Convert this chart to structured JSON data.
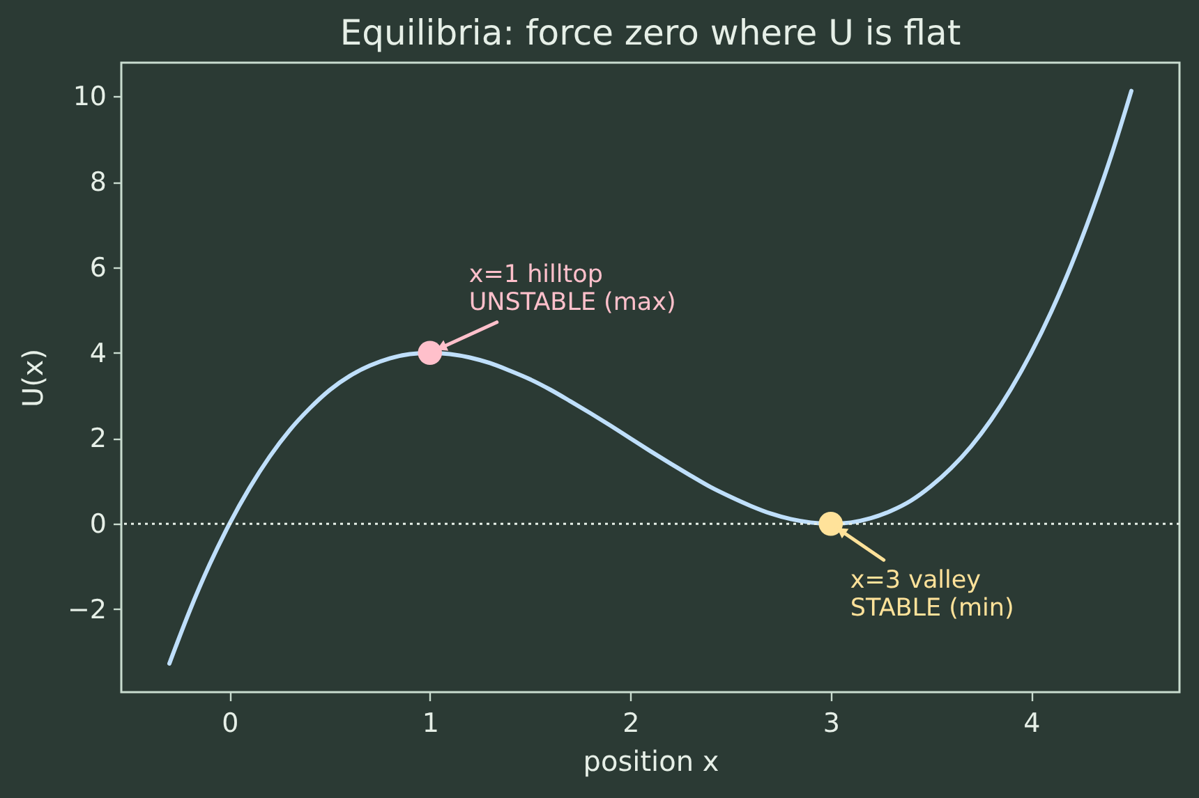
{
  "chart_data": {
    "type": "line",
    "title": "Equilibria: force zero where U is flat",
    "xlabel": "position x",
    "ylabel": "U(x)",
    "xlim": [
      -0.54,
      4.74
    ],
    "ylim": [
      -3.94,
      10.79
    ],
    "xticks": [
      0,
      1,
      2,
      3,
      4
    ],
    "yticks": [
      {
        "value": -2,
        "label": "−2"
      },
      0,
      2,
      4,
      6,
      8,
      10
    ],
    "series": [
      {
        "type": "line",
        "color": "#bfdffb",
        "line_style": "solid",
        "x": [
          -0.3,
          -0.2,
          -0.1,
          0,
          0.1,
          0.2,
          0.3,
          0.4,
          0.5,
          0.6,
          0.7,
          0.8,
          0.9,
          1.0,
          1.1,
          1.2,
          1.3,
          1.4,
          1.5,
          1.6,
          1.7,
          1.8,
          1.9,
          2.0,
          2.1,
          2.2,
          2.3,
          2.4,
          2.5,
          2.6,
          2.7,
          2.8,
          2.9,
          3.0,
          3.1,
          3.2,
          3.3,
          3.4,
          3.5,
          3.6,
          3.7,
          3.8,
          3.9,
          4.0,
          4.1,
          4.2,
          4.3,
          4.4,
          4.5
        ],
        "values": [
          -3.27,
          -2.05,
          -0.96,
          0,
          0.84,
          1.57,
          2.19,
          2.7,
          3.13,
          3.46,
          3.7,
          3.87,
          3.97,
          4,
          3.97,
          3.89,
          3.76,
          3.58,
          3.38,
          3.14,
          2.87,
          2.59,
          2.3,
          2,
          1.7,
          1.41,
          1.13,
          0.86,
          0.63,
          0.42,
          0.24,
          0.11,
          0.03,
          0,
          0.03,
          0.13,
          0.3,
          0.54,
          0.88,
          1.3,
          1.81,
          2.43,
          3.16,
          4,
          4.96,
          6.05,
          7.27,
          8.62,
          10.13
        ]
      },
      {
        "type": "scatter",
        "color": "#ffc0cb",
        "marker": "circle",
        "x": [
          1
        ],
        "values": [
          4
        ]
      },
      {
        "type": "scatter",
        "color": "#ffe29a",
        "marker": "circle",
        "x": [
          3
        ],
        "values": [
          0
        ]
      }
    ],
    "ref_lines": [
      {
        "axis": "y",
        "value": 0,
        "color": "#e6efe7",
        "line_style": "dotted"
      }
    ],
    "annotations": [
      {
        "text": "x=1 hilltop\nUNSTABLE (max)",
        "x": 1,
        "y": 4
      },
      {
        "text": "x=3 valley\nSTABLE (min)",
        "x": 3,
        "y": 0
      }
    ],
    "grid": false
  }
}
